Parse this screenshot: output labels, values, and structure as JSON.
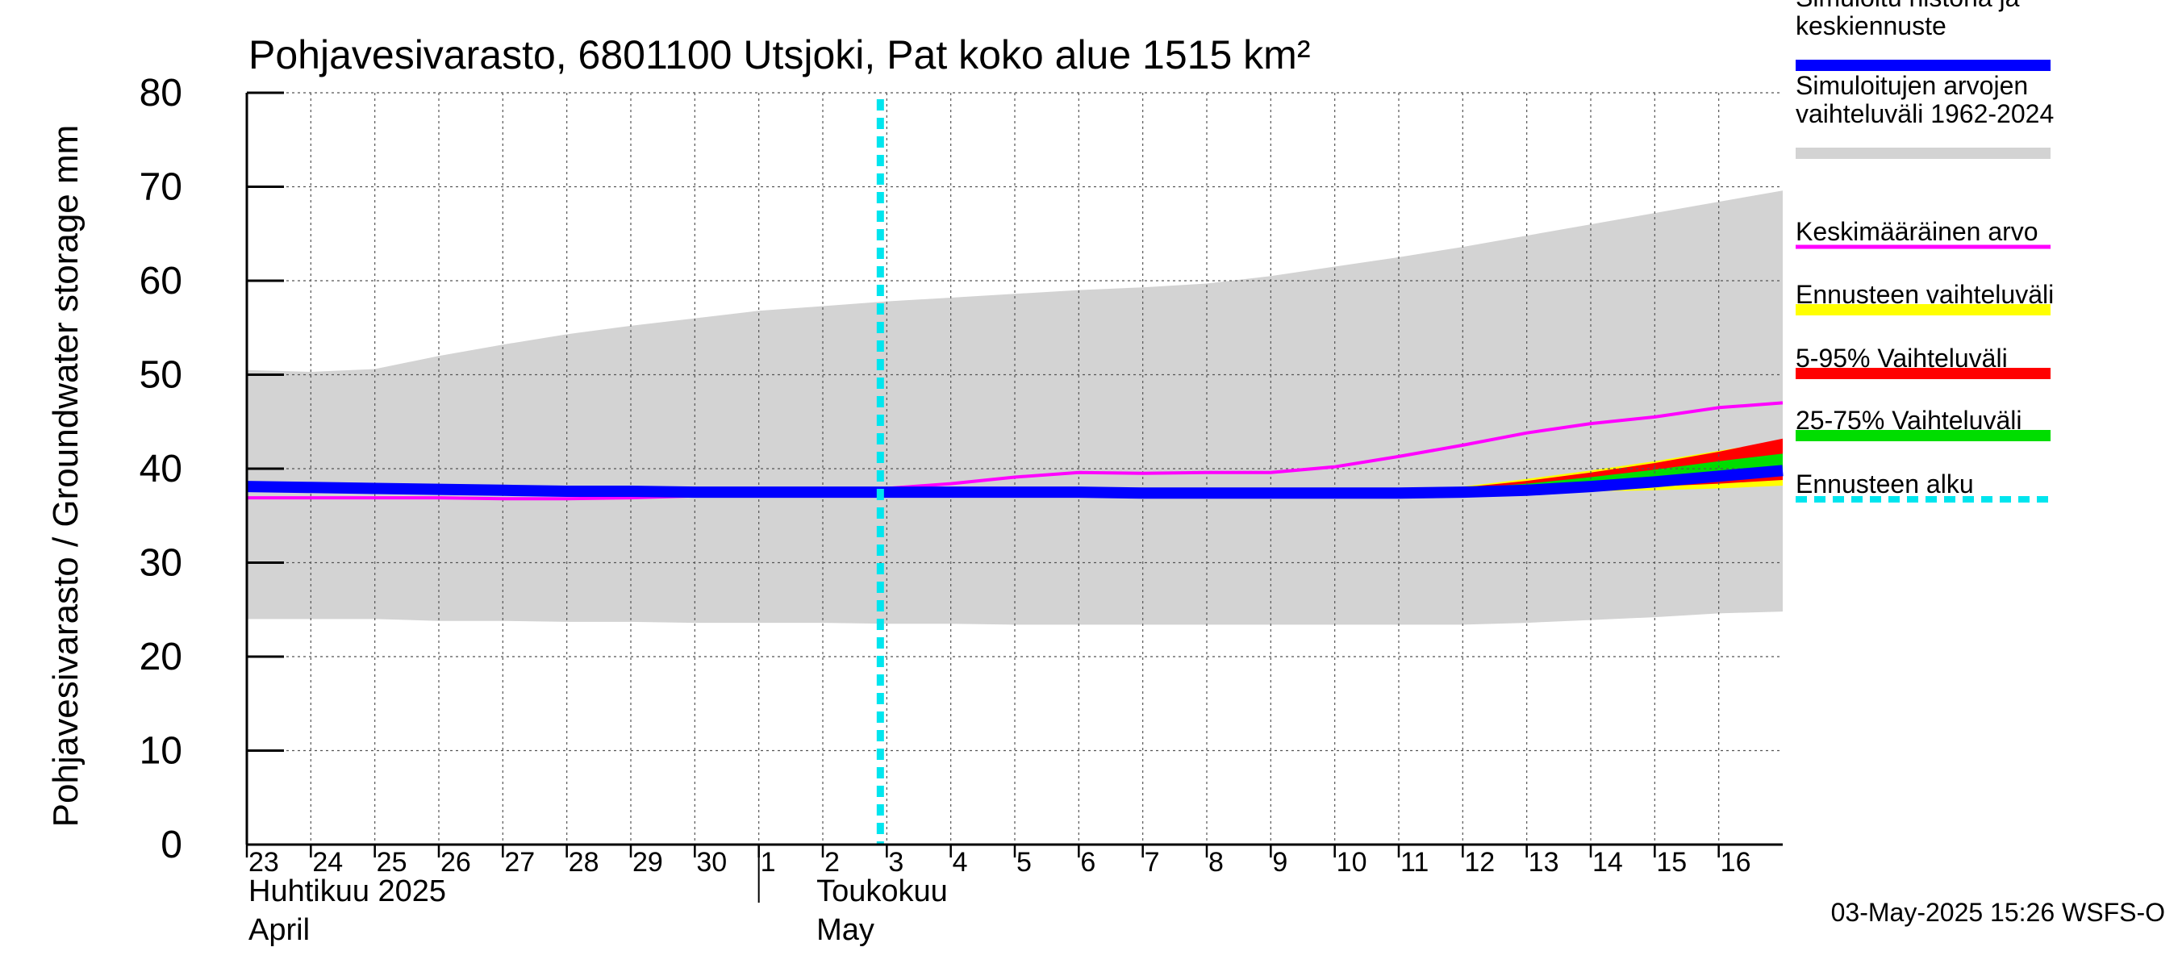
{
  "chart_data": {
    "type": "area",
    "title": "Pohjavesivarasto, 6801100 Utsjoki, Pat koko alue 1515 km²",
    "ylabel": "Pohjavesivarasto / Groundwater storage   mm",
    "ylim": [
      0,
      80
    ],
    "yticks": [
      0,
      10,
      20,
      30,
      40,
      50,
      60,
      70,
      80
    ],
    "grid": true,
    "legend_position": "right",
    "x_start": "2025-04-23",
    "x_end": "2025-05-16",
    "day_labels": [
      "23",
      "24",
      "25",
      "26",
      "27",
      "28",
      "29",
      "30",
      "1",
      "2",
      "3",
      "4",
      "5",
      "6",
      "7",
      "8",
      "9",
      "10",
      "11",
      "12",
      "13",
      "14",
      "15",
      "16"
    ],
    "month_labels": [
      {
        "fi": "Huhtikuu  2025",
        "en": "April",
        "start": "2025-04-23"
      },
      {
        "fi": "Toukokuu",
        "en": "May",
        "start": "2025-05-03"
      }
    ],
    "forecast_start": "2025-05-03",
    "timestamp": "03-May-2025 15:26 WSFS-O",
    "dates": [
      "04-23",
      "04-24",
      "04-25",
      "04-26",
      "04-27",
      "04-28",
      "04-29",
      "04-30",
      "05-01",
      "05-02",
      "05-03",
      "05-04",
      "05-05",
      "05-06",
      "05-07",
      "05-08",
      "05-09",
      "05-10",
      "05-11",
      "05-12",
      "05-13",
      "05-14",
      "05-15",
      "05-16",
      "05-17"
    ],
    "series": [
      {
        "name": "Simuloitujen arvojen vaihteluväli 1962-2024",
        "kind": "band",
        "color": "#d3d3d3",
        "low": [
          24.0,
          24.0,
          24.0,
          23.8,
          23.8,
          23.7,
          23.7,
          23.6,
          23.6,
          23.6,
          23.5,
          23.5,
          23.4,
          23.4,
          23.4,
          23.4,
          23.4,
          23.4,
          23.4,
          23.4,
          23.6,
          23.9,
          24.2,
          24.6,
          24.8
        ],
        "high": [
          50.5,
          50.3,
          50.6,
          52.0,
          53.2,
          54.3,
          55.2,
          56.0,
          56.8,
          57.3,
          57.8,
          58.2,
          58.6,
          59.0,
          59.3,
          59.7,
          60.5,
          61.5,
          62.5,
          63.6,
          64.8,
          66.0,
          67.2,
          68.4,
          69.6
        ]
      },
      {
        "name": "Ennusteen vaihteluväli",
        "kind": "band",
        "color": "#ffff00",
        "low": [
          null,
          null,
          null,
          null,
          null,
          null,
          null,
          null,
          null,
          null,
          37.7,
          37.6,
          37.5,
          37.4,
          37.3,
          37.3,
          37.3,
          37.3,
          37.3,
          37.4,
          37.5,
          37.6,
          37.7,
          37.9,
          38.2
        ],
        "high": [
          null,
          null,
          null,
          null,
          null,
          null,
          null,
          null,
          null,
          null,
          37.9,
          37.8,
          37.7,
          37.6,
          37.5,
          37.5,
          37.5,
          37.5,
          37.7,
          38.1,
          38.9,
          39.8,
          40.8,
          41.9,
          43.0
        ]
      },
      {
        "name": "5-95% Vaihteluväli",
        "kind": "band",
        "color": "#ff0000",
        "low": [
          null,
          null,
          null,
          null,
          null,
          null,
          null,
          null,
          null,
          null,
          37.7,
          37.6,
          37.5,
          37.4,
          37.3,
          37.3,
          37.3,
          37.3,
          37.3,
          37.4,
          37.6,
          37.8,
          38.1,
          38.4,
          38.8
        ],
        "high": [
          null,
          null,
          null,
          null,
          null,
          null,
          null,
          null,
          null,
          null,
          37.9,
          37.8,
          37.7,
          37.6,
          37.5,
          37.5,
          37.5,
          37.5,
          37.7,
          38.0,
          38.7,
          39.6,
          40.6,
          41.8,
          43.2
        ]
      },
      {
        "name": "25-75% Vaihteluväli",
        "kind": "band",
        "color": "#00dd00",
        "low": [
          null,
          null,
          null,
          null,
          null,
          null,
          null,
          null,
          null,
          null,
          37.7,
          37.6,
          37.5,
          37.4,
          37.3,
          37.3,
          37.3,
          37.3,
          37.3,
          37.4,
          37.7,
          38.1,
          38.5,
          39.0,
          39.5
        ],
        "high": [
          null,
          null,
          null,
          null,
          null,
          null,
          null,
          null,
          null,
          null,
          37.9,
          37.8,
          37.7,
          37.6,
          37.5,
          37.5,
          37.5,
          37.5,
          37.6,
          37.9,
          38.4,
          39.1,
          39.9,
          40.8,
          41.6
        ]
      },
      {
        "name": "Keskimääräinen arvo",
        "kind": "line",
        "color": "#ff00ff",
        "values": [
          36.9,
          36.9,
          36.9,
          36.9,
          36.8,
          36.8,
          36.9,
          37.1,
          37.3,
          37.6,
          37.9,
          38.4,
          39.1,
          39.6,
          39.5,
          39.6,
          39.6,
          40.2,
          41.3,
          42.5,
          43.8,
          44.8,
          45.5,
          46.5,
          47.0
        ]
      },
      {
        "name": "Simuloitu historia ja keskiennuste",
        "kind": "line",
        "color": "#0000ff",
        "values": [
          38.1,
          38.0,
          37.9,
          37.8,
          37.7,
          37.6,
          37.6,
          37.5,
          37.5,
          37.5,
          37.5,
          37.5,
          37.5,
          37.5,
          37.4,
          37.4,
          37.4,
          37.4,
          37.4,
          37.5,
          37.7,
          38.1,
          38.6,
          39.2,
          39.8
        ]
      }
    ],
    "legend": [
      {
        "label": "Simuloitu historia ja keskiennuste",
        "color": "#0000ff",
        "style": "thick"
      },
      {
        "label": "Simuloitujen arvojen vaihteluväli 1962-2024",
        "color": "#d3d3d3",
        "style": "band"
      },
      {
        "label": "Keskimääräinen arvo",
        "color": "#ff00ff",
        "style": "thin"
      },
      {
        "label": "Ennusteen vaihteluväli",
        "color": "#ffff00",
        "style": "band"
      },
      {
        "label": "5-95% Vaihteluväli",
        "color": "#ff0000",
        "style": "band"
      },
      {
        "label": "25-75% Vaihteluväli",
        "color": "#00dd00",
        "style": "band"
      },
      {
        "label": "Ennusteen alku",
        "color": "#00e5ee",
        "style": "dashed"
      }
    ]
  }
}
